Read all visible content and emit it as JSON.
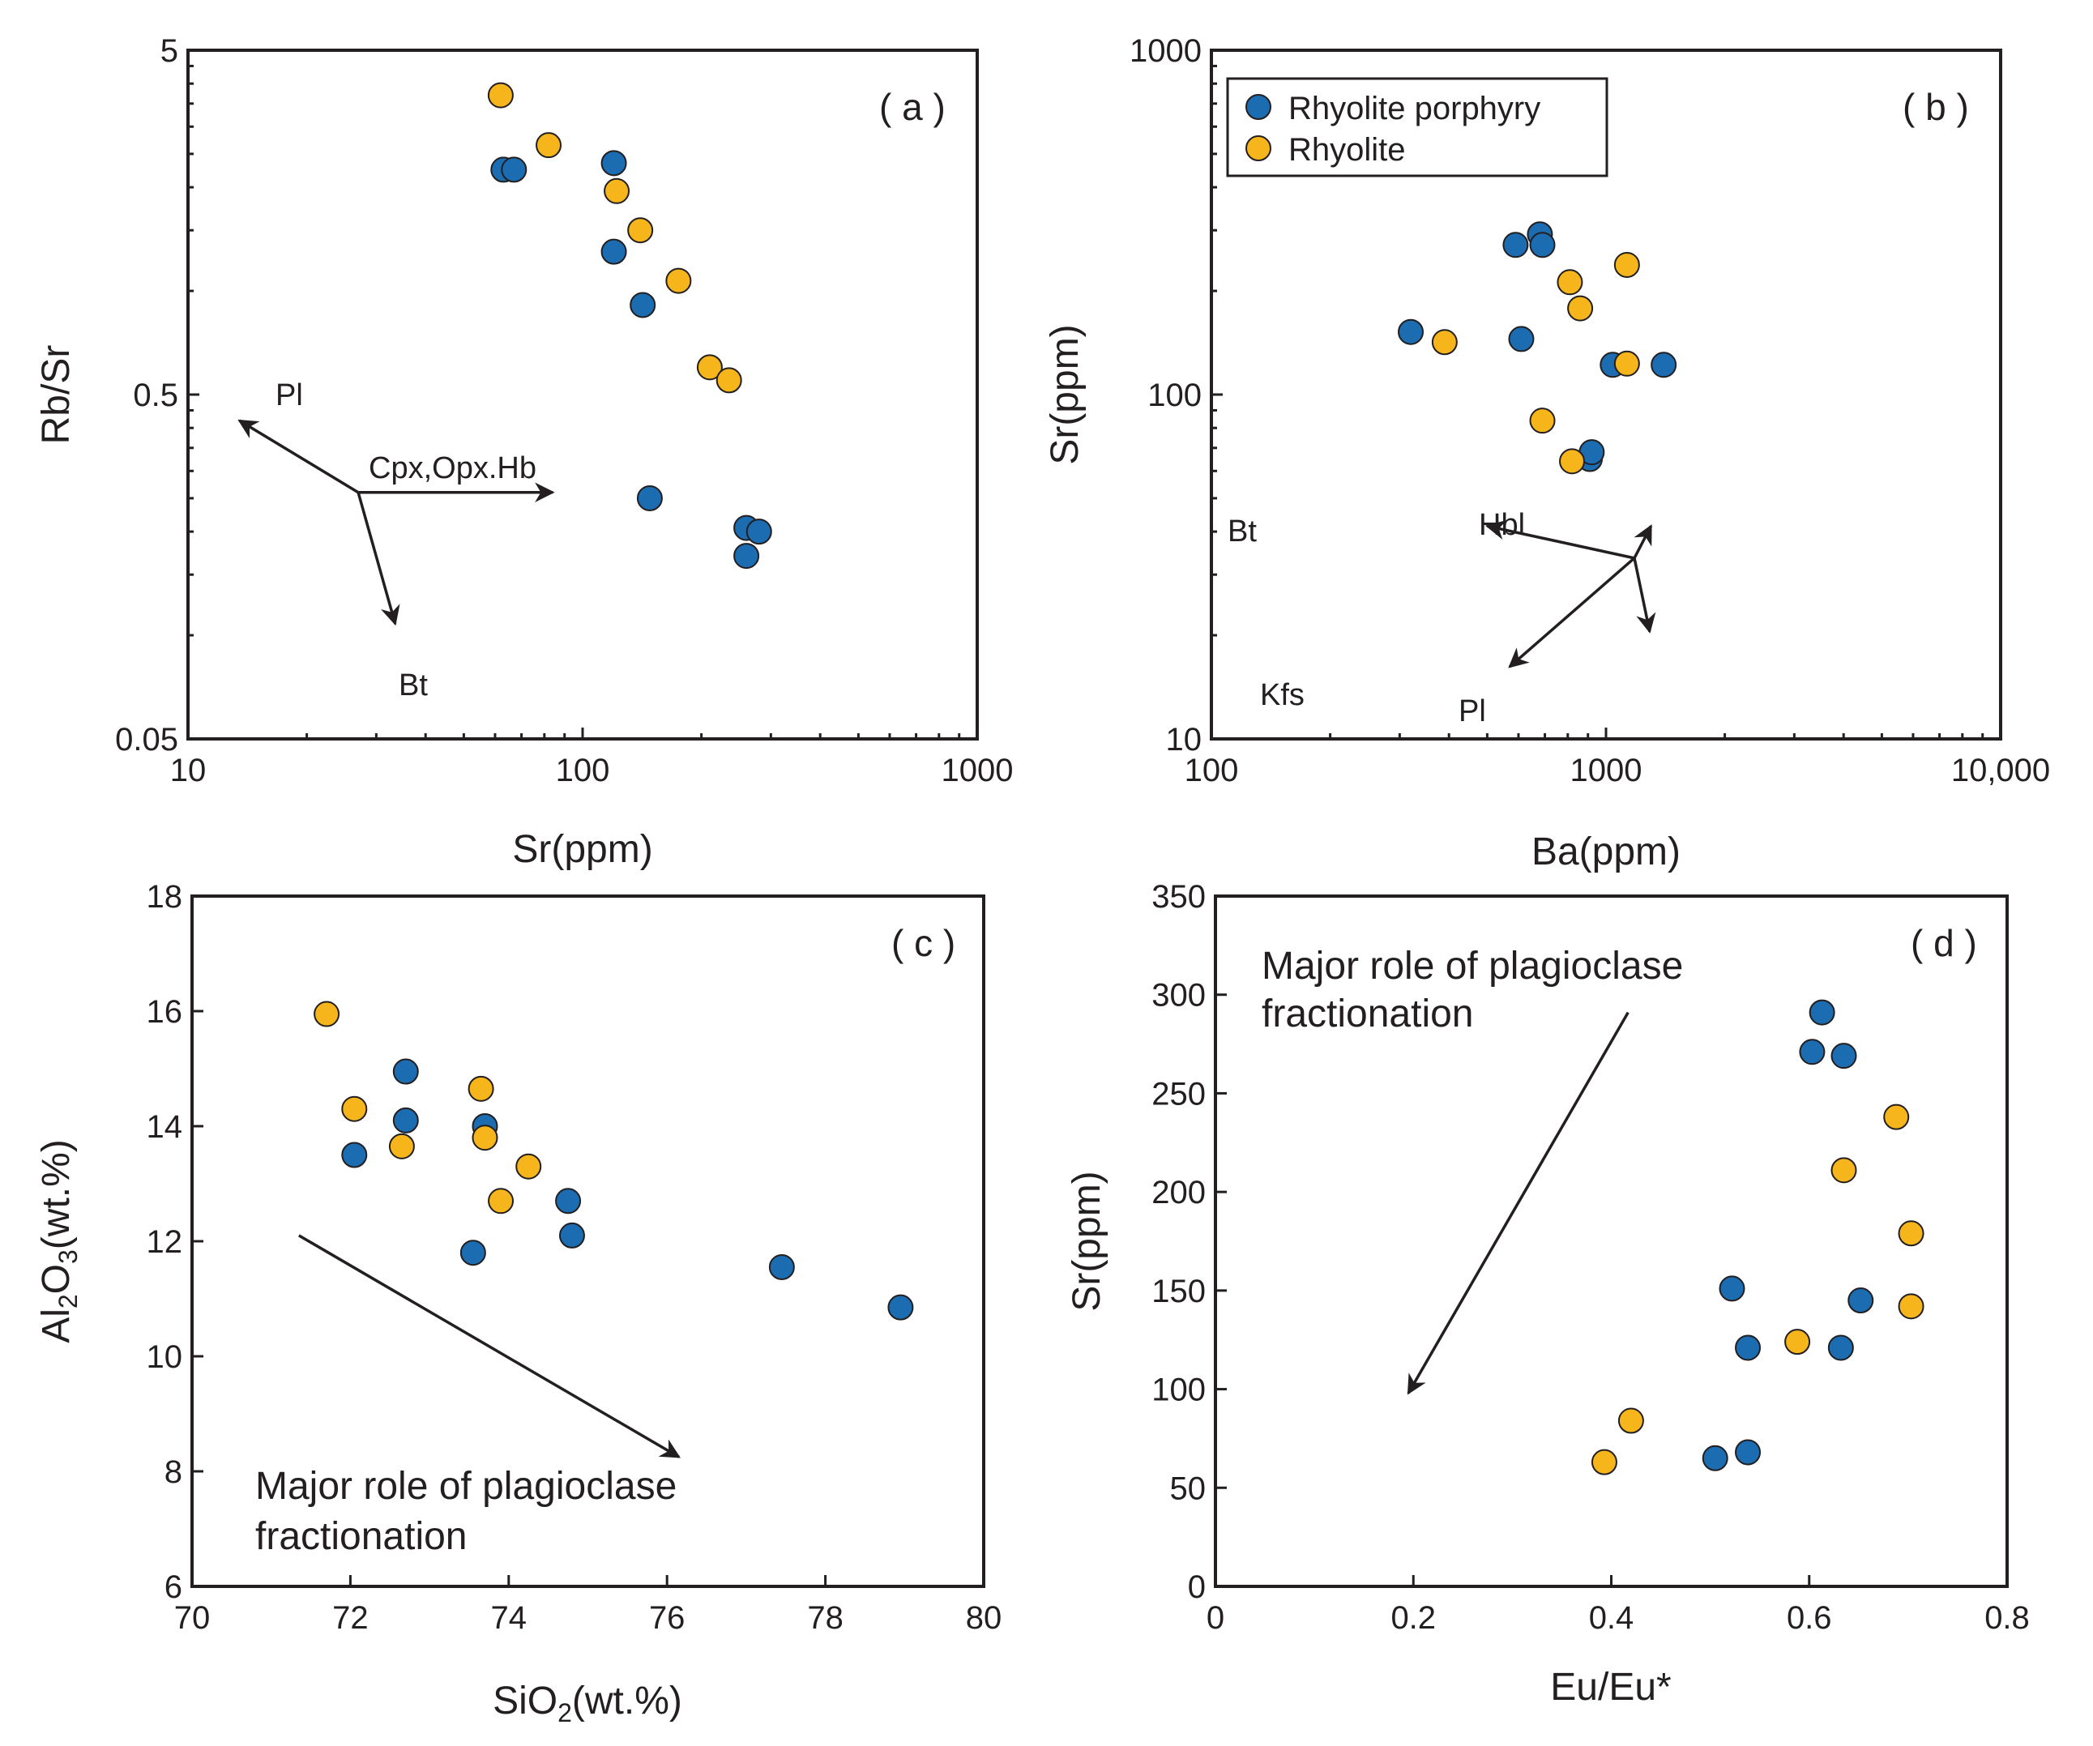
{
  "colors": {
    "rhyolite_porphyry": "#1b6cb0",
    "rhyolite": "#f5b51b",
    "axis": "#231f20"
  },
  "legend": [
    {
      "name": "Rhyolite porphyry",
      "color": "#1b6cb0"
    },
    {
      "name": "Rhyolite",
      "color": "#f5b51b"
    }
  ],
  "chart_data": [
    {
      "id": "a",
      "type": "scatter",
      "panel_label": "( a )",
      "xscale": "log",
      "yscale": "log",
      "xlim": [
        10,
        1000
      ],
      "ylim": [
        0.05,
        5
      ],
      "xticks": [
        10,
        100,
        1000
      ],
      "xtick_labels": [
        "10",
        "100",
        "1000"
      ],
      "yticks": [
        0.05,
        0.5,
        5
      ],
      "ytick_labels": [
        "0.05",
        "0.5",
        "5"
      ],
      "xlabel": "Sr(ppm)",
      "ylabel": "Rb/Sr",
      "series": [
        {
          "name": "Rhyolite porphyry",
          "color": "#1b6cb0",
          "x": [
            63,
            67,
            120,
            120,
            142,
            148,
            260,
            280,
            260
          ],
          "y": [
            2.25,
            2.25,
            2.35,
            1.3,
            0.91,
            0.25,
            0.205,
            0.2,
            0.17
          ]
        },
        {
          "name": "Rhyolite",
          "color": "#f5b51b",
          "x": [
            62,
            82,
            122,
            140,
            175,
            210,
            235
          ],
          "y": [
            3.7,
            2.65,
            1.95,
            1.5,
            1.07,
            0.6,
            0.55
          ]
        }
      ],
      "vectors": {
        "origin": [
          27,
          0.26
        ],
        "items": [
          {
            "label": "Pl",
            "to": [
              13.5,
              0.42
            ]
          },
          {
            "label": "Cpx,Opx.Hb",
            "to": [
              84,
              0.26
            ]
          },
          {
            "label": "Bt",
            "to": [
              33.5,
              0.108
            ]
          }
        ]
      }
    },
    {
      "id": "b",
      "type": "scatter",
      "panel_label": "( b )",
      "xscale": "log",
      "yscale": "log",
      "xlim": [
        100,
        10000
      ],
      "ylim": [
        10,
        1000
      ],
      "xticks": [
        100,
        1000,
        10000
      ],
      "xtick_labels": [
        "100",
        "1000",
        "10,000"
      ],
      "yticks": [
        10,
        100,
        1000
      ],
      "ytick_labels": [
        "10",
        "100",
        "1000"
      ],
      "xlabel": "Ba(ppm)",
      "ylabel": "Sr(ppm)",
      "series": [
        {
          "name": "Rhyolite porphyry",
          "color": "#1b6cb0",
          "x": [
            590,
            680,
            690,
            320,
            610,
            1040,
            1400,
            910,
            920
          ],
          "y": [
            272,
            292,
            272,
            152,
            145,
            122,
            122,
            65,
            68
          ]
        },
        {
          "name": "Rhyolite",
          "color": "#f5b51b",
          "x": [
            1130,
            810,
            860,
            390,
            1130,
            690,
            820
          ],
          "y": [
            238,
            212,
            178,
            142,
            123,
            84,
            64
          ]
        }
      ],
      "vectors": {
        "origin": [
          1180,
          33.5
        ],
        "items": [
          {
            "label": "Bt",
            "to": [
              500,
              41.5
            ]
          },
          {
            "label": "Hbl",
            "to": [
              1300,
              41.5
            ]
          },
          {
            "label": "Kfs",
            "to": [
              570,
              16.2
            ]
          },
          {
            "label": "Pl",
            "to": [
              1290,
              20.5
            ]
          }
        ]
      }
    },
    {
      "id": "c",
      "type": "scatter",
      "panel_label": "( c )",
      "xscale": "linear",
      "yscale": "linear",
      "xlim": [
        70,
        80
      ],
      "ylim": [
        6,
        18
      ],
      "xticks": [
        70,
        72,
        74,
        76,
        78,
        80
      ],
      "xtick_labels": [
        "70",
        "72",
        "74",
        "76",
        "78",
        "80"
      ],
      "yticks": [
        6,
        8,
        10,
        12,
        14,
        16,
        18
      ],
      "ytick_labels": [
        "6",
        "8",
        "10",
        "12",
        "14",
        "16",
        "18"
      ],
      "xlabel": "SiO",
      "xlabel_sub": "2",
      "xlabel_tail": "(wt.%)",
      "ylabel": "Al",
      "ylabel_sub1": "2",
      "ylabel_mid": "O",
      "ylabel_sub2": "3",
      "ylabel_tail": "(wt.%)",
      "series": [
        {
          "name": "Rhyolite porphyry",
          "color": "#1b6cb0",
          "x": [
            72.7,
            72.7,
            72.05,
            73.7,
            73.55,
            74.75,
            74.8,
            77.45,
            78.95
          ],
          "y": [
            14.95,
            14.1,
            13.5,
            14.0,
            11.8,
            12.7,
            12.1,
            11.55,
            10.85
          ]
        },
        {
          "name": "Rhyolite",
          "color": "#f5b51b",
          "x": [
            71.7,
            72.05,
            72.65,
            73.65,
            73.7,
            74.25,
            73.9
          ],
          "y": [
            15.95,
            14.3,
            13.65,
            14.65,
            13.8,
            13.3,
            12.7
          ]
        }
      ],
      "trend_arrow": {
        "from": [
          71.35,
          12.1
        ],
        "to": [
          76.15,
          8.25
        ]
      },
      "note": [
        "Major role of plagioclase",
        "fractionation"
      ]
    },
    {
      "id": "d",
      "type": "scatter",
      "panel_label": "( d )",
      "xscale": "linear",
      "yscale": "linear",
      "xlim": [
        0,
        0.8
      ],
      "ylim": [
        0,
        350
      ],
      "xticks": [
        0,
        0.2,
        0.4,
        0.6,
        0.8
      ],
      "xtick_labels": [
        "0",
        "0.2",
        "0.4",
        "0.6",
        "0.8"
      ],
      "yticks": [
        0,
        50,
        100,
        150,
        200,
        250,
        300,
        350
      ],
      "ytick_labels": [
        "0",
        "50",
        "100",
        "150",
        "200",
        "250",
        "300",
        "350"
      ],
      "xlabel": "Eu/Eu*",
      "ylabel": "Sr(ppm)",
      "series": [
        {
          "name": "Rhyolite porphyry",
          "color": "#1b6cb0",
          "x": [
            0.613,
            0.603,
            0.635,
            0.522,
            0.538,
            0.632,
            0.652,
            0.538,
            0.505
          ],
          "y": [
            291,
            271,
            269,
            151,
            121,
            121,
            145,
            68,
            65
          ]
        },
        {
          "name": "Rhyolite",
          "color": "#f5b51b",
          "x": [
            0.688,
            0.635,
            0.703,
            0.703,
            0.588,
            0.42,
            0.393
          ],
          "y": [
            238,
            211,
            179,
            142,
            124,
            84,
            63
          ]
        }
      ],
      "trend_arrow": {
        "from": [
          0.417,
          291
        ],
        "to": [
          0.195,
          98
        ]
      },
      "note": [
        "Major role of plagioclase",
        "fractionation"
      ]
    }
  ]
}
